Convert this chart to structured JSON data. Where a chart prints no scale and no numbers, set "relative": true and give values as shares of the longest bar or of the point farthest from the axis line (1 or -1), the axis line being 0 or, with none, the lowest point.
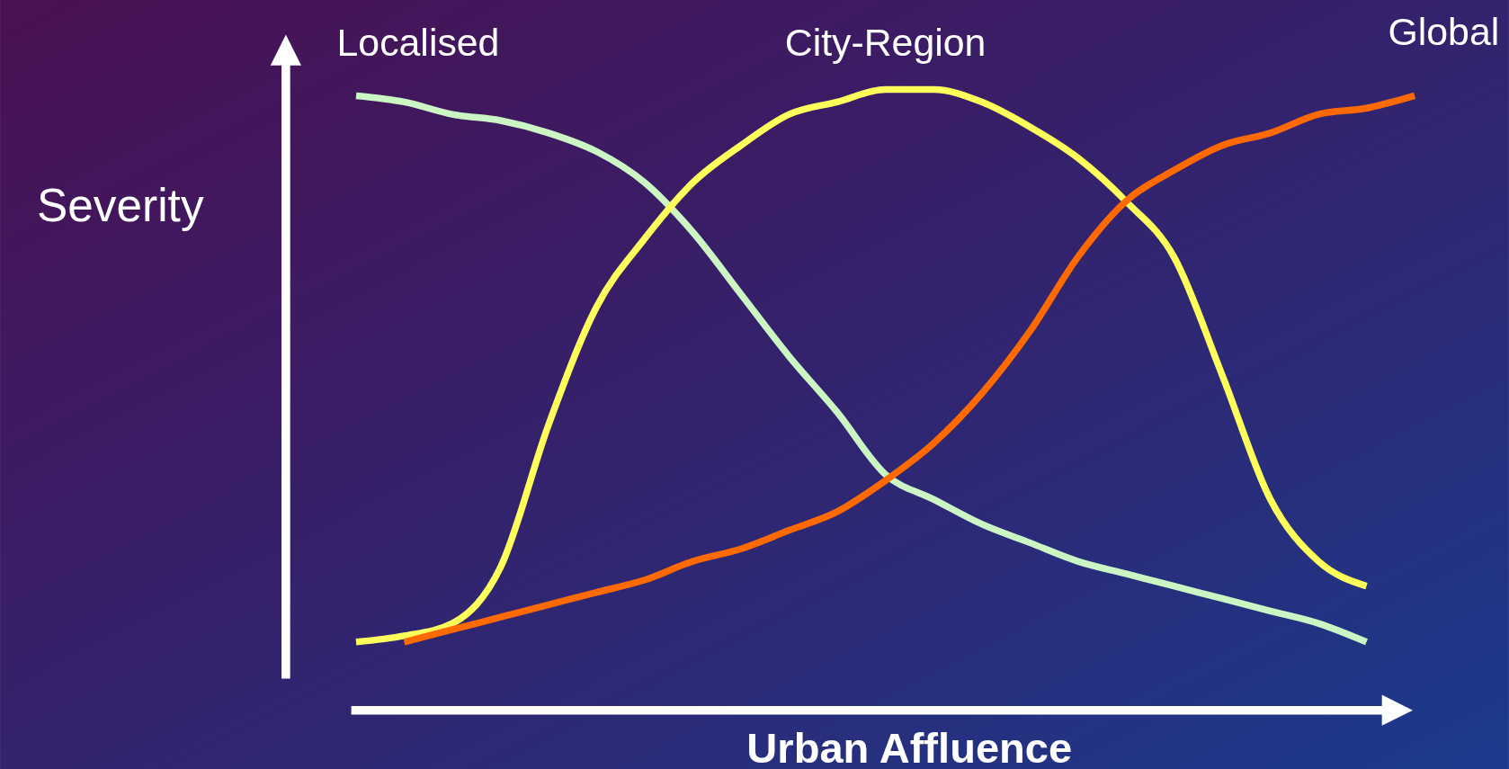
{
  "chart_data": {
    "type": "line",
    "relative": true,
    "xlabel": "Urban Affluence",
    "ylabel": "Severity",
    "categories": [
      null,
      null,
      null,
      null,
      null,
      null,
      null,
      null,
      null,
      null,
      null,
      null,
      null,
      null,
      null,
      null,
      null,
      null,
      null,
      null,
      null,
      null,
      null
    ],
    "series": [
      {
        "name": "Localised",
        "color": "#ccf5c4",
        "values": [
          0.99,
          0.98,
          0.96,
          0.95,
          0.93,
          0.9,
          0.85,
          0.77,
          0.67,
          0.57,
          0.48,
          0.38,
          0.34,
          0.3,
          0.27,
          0.24,
          0.22,
          0.2,
          0.18,
          0.16,
          0.14,
          0.11,
          null
        ]
      },
      {
        "name": "City-Region",
        "color": "#ffff5c",
        "values": [
          0.11,
          0.12,
          0.14,
          0.23,
          0.46,
          0.65,
          0.76,
          0.85,
          0.91,
          0.96,
          0.98,
          1.0,
          1.0,
          0.98,
          0.94,
          0.89,
          0.82,
          0.73,
          0.54,
          0.34,
          0.24,
          0.2,
          null
        ]
      },
      {
        "name": "Global",
        "color": "#ff6a00",
        "values": [
          null,
          0.11,
          0.13,
          0.15,
          0.17,
          0.19,
          0.21,
          0.24,
          0.26,
          0.29,
          0.32,
          0.37,
          0.43,
          0.51,
          0.61,
          0.73,
          0.82,
          0.87,
          0.91,
          0.93,
          0.96,
          0.97,
          0.99
        ]
      }
    ],
    "legend": false,
    "grid": false,
    "marker": "none",
    "line_style": "solid"
  }
}
